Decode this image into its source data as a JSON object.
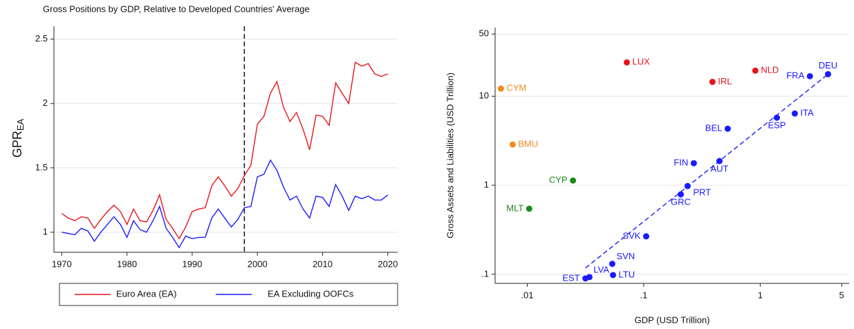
{
  "chart_data": [
    {
      "type": "line",
      "title": "Gross Positions by GDP, Relative to Developed Countries' Average",
      "ylabel": "GPR",
      "ylabel_sub": "EA",
      "x": [
        1970,
        1971,
        1972,
        1973,
        1974,
        1975,
        1976,
        1977,
        1978,
        1979,
        1980,
        1981,
        1982,
        1983,
        1984,
        1985,
        1986,
        1987,
        1988,
        1989,
        1990,
        1991,
        1992,
        1993,
        1994,
        1995,
        1996,
        1997,
        1998,
        1999,
        2000,
        2001,
        2002,
        2003,
        2004,
        2005,
        2006,
        2007,
        2008,
        2009,
        2010,
        2011,
        2012,
        2013,
        2014,
        2015,
        2016,
        2017,
        2018,
        2019,
        2020
      ],
      "series": [
        {
          "name": "Euro Area (EA)",
          "color": "#e8141b",
          "values": [
            1.145,
            1.11,
            1.09,
            1.12,
            1.11,
            1.03,
            1.1,
            1.16,
            1.21,
            1.16,
            1.06,
            1.18,
            1.09,
            1.08,
            1.17,
            1.29,
            1.1,
            1.03,
            0.95,
            1.04,
            1.16,
            1.18,
            1.19,
            1.36,
            1.43,
            1.36,
            1.28,
            1.34,
            1.44,
            1.52,
            1.84,
            1.9,
            2.08,
            2.17,
            1.97,
            1.86,
            1.93,
            1.8,
            1.64,
            1.91,
            1.9,
            1.83,
            2.16,
            2.08,
            2.0,
            2.32,
            2.29,
            2.31,
            2.23,
            2.21,
            2.23
          ]
        },
        {
          "name": "EA Excluding OOFCs",
          "color": "#1a1aff",
          "values": [
            1.0,
            0.99,
            0.98,
            1.03,
            1.01,
            0.93,
            1.0,
            1.06,
            1.12,
            1.06,
            0.96,
            1.09,
            1.02,
            1.0,
            1.09,
            1.2,
            1.03,
            0.96,
            0.88,
            0.97,
            0.95,
            0.96,
            0.96,
            1.11,
            1.18,
            1.11,
            1.04,
            1.1,
            1.19,
            1.2,
            1.43,
            1.45,
            1.56,
            1.48,
            1.35,
            1.25,
            1.28,
            1.18,
            1.11,
            1.28,
            1.27,
            1.2,
            1.37,
            1.28,
            1.17,
            1.28,
            1.26,
            1.28,
            1.25,
            1.25,
            1.29
          ]
        }
      ],
      "vline": 1998,
      "xlim": [
        1968.8,
        2021.5
      ],
      "xticks": [
        1970,
        1980,
        1990,
        2000,
        2010,
        2020
      ],
      "ylim": [
        0.844,
        2.6
      ],
      "yticks": [
        1,
        1.5,
        2,
        2.5
      ],
      "grid": true,
      "legend": "bottom"
    },
    {
      "type": "scatter",
      "xlabel": "GDP (USD Trillion)",
      "ylabel": "Gross Assets and Liabilities (USD Trillion)",
      "xscale": "log",
      "yscale": "log",
      "xlim": [
        0.0053,
        5.8
      ],
      "xticks": [
        {
          "value": 0.01,
          "label": ".01"
        },
        {
          "value": 0.1,
          "label": ".1"
        },
        1,
        5
      ],
      "ylim": [
        0.079,
        59
      ],
      "yticks": [
        {
          "value": 0.1,
          "label": ".1"
        },
        1,
        10,
        50
      ],
      "grid": true,
      "series": [
        {
          "color": "#e8141b",
          "labels": [
            "LUX",
            "NLD",
            "IRL"
          ],
          "x": [
            0.0716,
            0.908,
            0.389
          ],
          "y": [
            24.0,
            19.4,
            14.5
          ],
          "label_positions": [
            "right",
            "right",
            "right"
          ]
        },
        {
          "color": "#f28a1e",
          "labels": [
            "CYM",
            "BMU"
          ],
          "x": [
            0.00594,
            0.0075
          ],
          "y": [
            12.2,
            2.87
          ],
          "label_positions": [
            "right",
            "right"
          ]
        },
        {
          "color": "#1a8a1a",
          "labels": [
            "CYP",
            "MLT"
          ],
          "x": [
            0.0247,
            0.0104
          ],
          "y": [
            1.13,
            0.545
          ],
          "label_positions": [
            "left",
            "left"
          ]
        },
        {
          "color": "#1a1aff",
          "labels": [
            "DEU",
            "FRA",
            "ITA",
            "ESP",
            "BEL",
            "FIN",
            "AUT",
            "PRT",
            "GRC",
            "SVK",
            "SVN",
            "LVA",
            "EST",
            "LTU"
          ],
          "x": [
            3.82,
            2.67,
            1.98,
            1.39,
            0.526,
            0.269,
            0.447,
            0.238,
            0.208,
            0.105,
            0.0537,
            0.0342,
            0.0316,
            0.0545
          ],
          "y": [
            17.7,
            16.8,
            6.4,
            5.75,
            4.32,
            1.77,
            1.87,
            0.98,
            0.79,
            0.267,
            0.131,
            0.093,
            0.0898,
            0.098
          ],
          "label_positions": [
            "above",
            "left",
            "right",
            "below",
            "left",
            "left",
            "below",
            "belowright",
            "below",
            "left",
            "aboveright",
            "aboveright",
            "left",
            "right"
          ]
        }
      ],
      "fit": {
        "color": "#1a1aff",
        "x": [
          0.0316,
          3.82
        ],
        "y": [
          0.1175,
          17.7
        ]
      }
    }
  ]
}
